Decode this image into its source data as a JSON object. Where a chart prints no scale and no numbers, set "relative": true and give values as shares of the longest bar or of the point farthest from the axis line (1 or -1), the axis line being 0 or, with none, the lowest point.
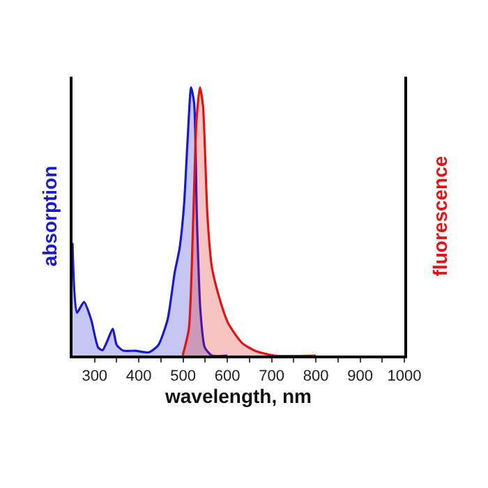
{
  "chart_data": {
    "type": "area",
    "relative": true,
    "xlabel": "wavelength, nm",
    "ylabel": "absorption",
    "y2label": "fluorescence",
    "xlim": [
      250,
      1000
    ],
    "xticks": [
      300,
      {
        "value": 350,
        "label": null
      },
      400,
      {
        "value": 450,
        "label": null
      },
      500,
      {
        "value": 550,
        "label": null
      },
      600,
      {
        "value": 650,
        "label": null
      },
      700,
      {
        "value": 750,
        "label": null
      },
      800,
      {
        "value": 850,
        "label": null
      },
      900,
      {
        "value": 950,
        "label": null
      },
      1000
    ],
    "series": [
      {
        "color": "#1a1acc",
        "axis": "y",
        "x": [
          250,
          260,
          276,
          292,
          308,
          318,
          329,
          341,
          350,
          365,
          392,
          423,
          444,
          465,
          481,
          492,
          502,
          510,
          518,
          525,
          531,
          539,
          549,
          565,
          600
        ],
        "values": [
          0.42,
          0.16,
          0.2,
          0.135,
          0.03,
          0.02,
          0.056,
          0.1,
          0.039,
          0.018,
          0.018,
          0.012,
          0.039,
          0.135,
          0.31,
          0.4,
          0.56,
          0.8,
          1,
          0.94,
          0.52,
          0.17,
          0.03,
          0,
          0
        ]
      },
      {
        "color": "#e01414",
        "axis": "y2",
        "x": [
          499,
          513,
          523,
          530,
          538,
          545,
          555,
          565,
          581,
          602,
          633,
          665,
          707,
          800
        ],
        "values": [
          0,
          0.1,
          0.52,
          0.87,
          1,
          0.93,
          0.52,
          0.33,
          0.22,
          0.12,
          0.047,
          0.016,
          0,
          0
        ]
      }
    ]
  }
}
